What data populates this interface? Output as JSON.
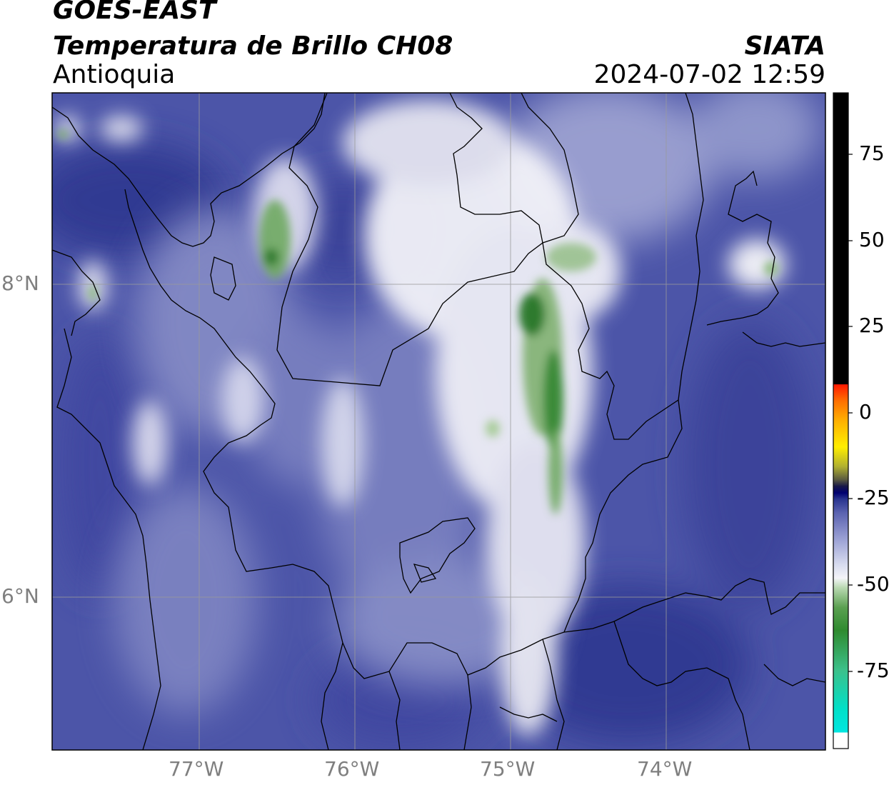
{
  "header": {
    "satellite": "GOES-EAST",
    "product": "Temperatura de Brillo CH08",
    "region": "Antioquia",
    "organization": "SIATA",
    "datetime": "2024-07-02 12:59"
  },
  "axes": {
    "x_ticks": [
      "77°W",
      "76°W",
      "75°W",
      "74°W"
    ],
    "y_ticks": [
      "8°N",
      "6°N"
    ]
  },
  "colorbar": {
    "ticks": [
      "75",
      "50",
      "25",
      "0",
      "-25",
      "-50",
      "-75"
    ],
    "colors": {
      "lowest": "#ffffff",
      "cyan": "#00e5cf",
      "green": "#2f8a2f",
      "white_band": "#f4f4f8",
      "blue_light": "#b8bce0",
      "blue_mid": "#5a62b0",
      "blue_dark": "#2a3590",
      "navy": "#000070",
      "yellow": "#ffee00",
      "orange": "#ff8800",
      "red": "#ff1a00",
      "black": "#000000"
    }
  },
  "map_colors": {
    "background_blue": "#4c55a8",
    "border_line": "#000000",
    "grid_line": "#999999"
  }
}
